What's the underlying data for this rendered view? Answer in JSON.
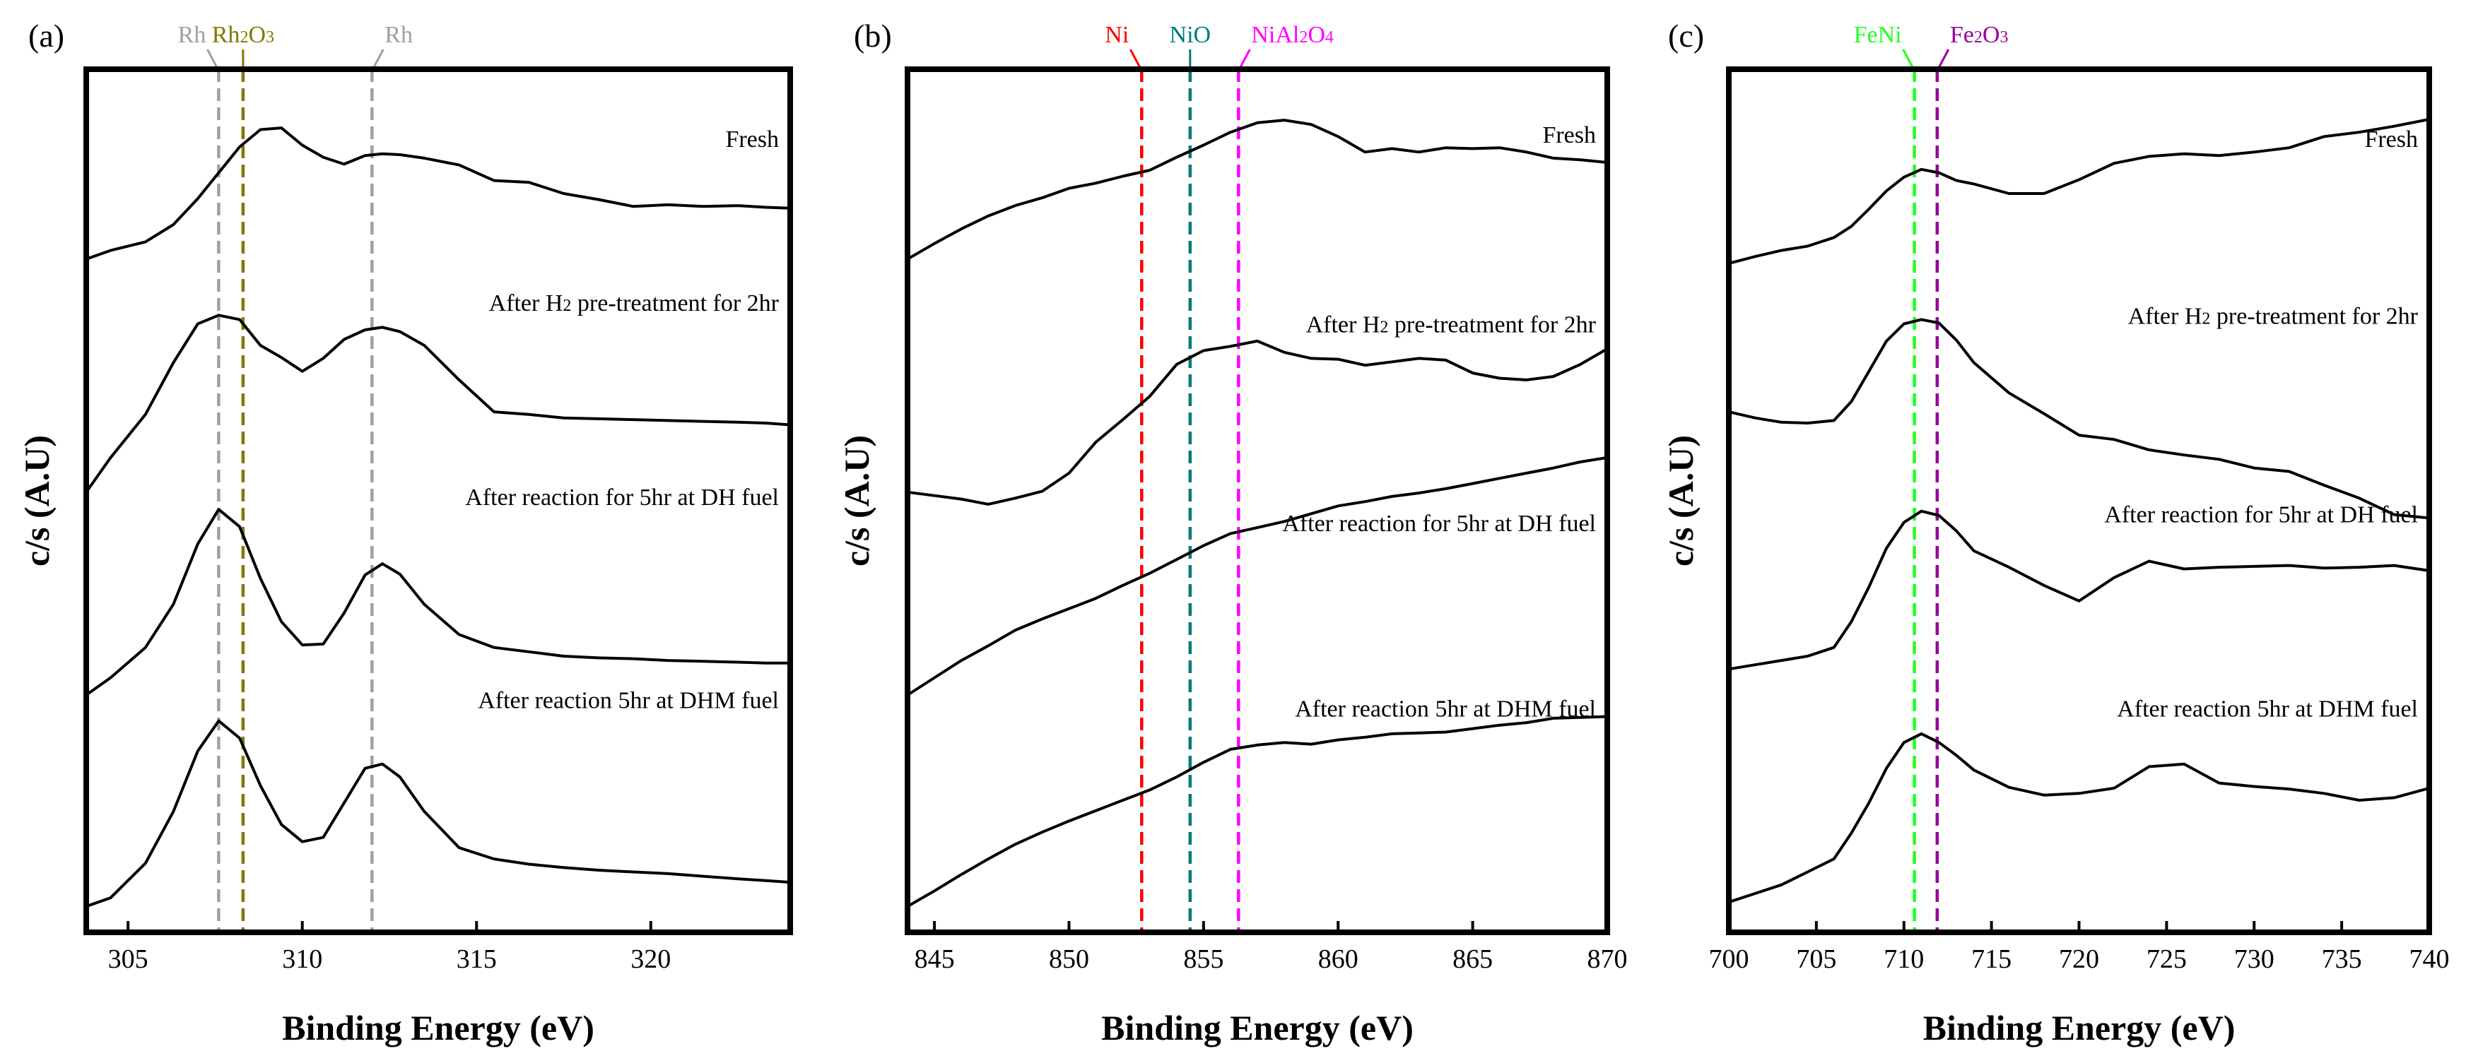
{
  "chart_data": [
    {
      "panel": "(a)",
      "type": "line",
      "xlabel": "Binding Energy (eV)",
      "ylabel": "c/s (A.U)",
      "xlim": [
        303.8,
        324
      ],
      "ylim": [
        0,
        100
      ],
      "xticks": [
        305,
        310,
        315,
        320
      ],
      "reference_lines": [
        {
          "label": "Rh",
          "x": 307.6,
          "color": "#a0a0a0"
        },
        {
          "label": "Rh2O3",
          "x": 308.3,
          "color": "#7f7a00"
        },
        {
          "label": "Rh",
          "x": 312.0,
          "color": "#a0a0a0"
        }
      ],
      "series": [
        {
          "name": "Fresh",
          "label_y": 91,
          "x": [
            303.8,
            304.5,
            305.5,
            306.3,
            307.0,
            307.6,
            308.2,
            308.8,
            309.4,
            310.0,
            310.6,
            311.2,
            311.8,
            312.3,
            312.8,
            313.5,
            314.5,
            315.5,
            316.5,
            317.5,
            318.5,
            319.5,
            320.5,
            321.5,
            322.5,
            323.3,
            324.0
          ],
          "values": [
            78,
            79,
            80,
            82,
            85,
            88,
            91,
            93,
            93.2,
            91.2,
            89.8,
            89,
            90,
            90.2,
            90.1,
            89.7,
            88.9,
            87.1,
            86.9,
            85.6,
            84.9,
            84.1,
            84.3,
            84.1,
            84.2,
            84,
            83.9
          ]
        },
        {
          "name": "After H2 pre-treatment for 2hr",
          "label_y": 72,
          "x": [
            303.8,
            304.5,
            305.5,
            306.3,
            307.0,
            307.6,
            308.2,
            308.8,
            309.4,
            310.0,
            310.6,
            311.2,
            311.8,
            312.3,
            312.8,
            313.5,
            314.5,
            315.5,
            316.5,
            317.5,
            318.5,
            319.5,
            320.5,
            321.5,
            322.5,
            323.3,
            324.0
          ],
          "values": [
            51,
            55,
            60,
            66,
            70.5,
            71.5,
            71,
            68,
            66.6,
            65,
            66.5,
            68.7,
            69.8,
            70.1,
            69.6,
            68,
            64,
            60.3,
            60,
            59.6,
            59.5,
            59.4,
            59.3,
            59.2,
            59.1,
            59,
            58.8
          ]
        },
        {
          "name": "After reaction for 5hr at DH fuel",
          "label_y": 49.5,
          "x": [
            303.8,
            304.5,
            305.5,
            306.3,
            307.0,
            307.6,
            308.2,
            308.8,
            309.4,
            310.0,
            310.6,
            311.2,
            311.8,
            312.3,
            312.8,
            313.5,
            314.5,
            315.5,
            316.5,
            317.5,
            318.5,
            319.5,
            320.5,
            321.5,
            322.5,
            323.3,
            324.0
          ],
          "values": [
            27.5,
            29.5,
            33,
            38,
            45,
            49,
            47,
            41,
            36,
            33.3,
            33.4,
            37,
            41.4,
            42.7,
            41.5,
            38,
            34.5,
            33,
            32.5,
            32,
            31.8,
            31.7,
            31.5,
            31.4,
            31.3,
            31.2,
            31.2
          ]
        },
        {
          "name": "After reaction 5hr at DHM fuel",
          "label_y": 26,
          "x": [
            303.8,
            304.5,
            305.5,
            306.3,
            307.0,
            307.6,
            308.2,
            308.8,
            309.4,
            310.0,
            310.6,
            311.2,
            311.8,
            312.3,
            312.8,
            313.5,
            314.5,
            315.5,
            316.5,
            317.5,
            318.5,
            319.5,
            320.5,
            321.5,
            322.5,
            323.3,
            324.0
          ],
          "values": [
            3,
            4,
            8,
            14,
            21,
            24.5,
            22.5,
            17,
            12.5,
            10.5,
            11,
            15,
            19,
            19.5,
            18,
            14,
            9.8,
            8.5,
            7.9,
            7.5,
            7.2,
            7,
            6.8,
            6.5,
            6.2,
            6,
            5.8
          ]
        }
      ]
    },
    {
      "panel": "(b)",
      "type": "line",
      "xlabel": "Binding Energy (eV)",
      "ylabel": "c/s (A.U)",
      "xlim": [
        844,
        870
      ],
      "ylim": [
        0,
        100
      ],
      "xticks": [
        845,
        850,
        855,
        860,
        865,
        870
      ],
      "reference_lines": [
        {
          "label": "Ni",
          "x": 852.7,
          "color": "#ff0000"
        },
        {
          "label": "NiO",
          "x": 854.5,
          "color": "#007a7a"
        },
        {
          "label": "NiAl2O4",
          "x": 856.3,
          "color": "#ff00ff"
        }
      ],
      "series": [
        {
          "name": "Fresh",
          "label_y": 91.5,
          "x": [
            844,
            845,
            846,
            847,
            848,
            849,
            850,
            851,
            852,
            853,
            854,
            855,
            856,
            857,
            858,
            859,
            860,
            861,
            862,
            863,
            864,
            865,
            866,
            867,
            868,
            869,
            870
          ],
          "values": [
            78,
            79.8,
            81.5,
            83,
            84.2,
            85.1,
            86.2,
            86.8,
            87.6,
            88.3,
            89.8,
            91.2,
            92.7,
            93.8,
            94.1,
            93.6,
            92.2,
            90.4,
            90.8,
            90.4,
            90.9,
            90.8,
            90.9,
            90.4,
            89.7,
            89.5,
            89.2
          ]
        },
        {
          "name": "After H2 pre-treatment for 2hr",
          "label_y": 69.5,
          "x": [
            844,
            845,
            846,
            847,
            848,
            849,
            850,
            851,
            852,
            853,
            854,
            855,
            856,
            857,
            858,
            859,
            860,
            861,
            862,
            863,
            864,
            865,
            866,
            867,
            868,
            869,
            870
          ],
          "values": [
            51,
            50.6,
            50.2,
            49.6,
            50.3,
            51.1,
            53.2,
            56.8,
            59.4,
            62.1,
            65.8,
            67.4,
            67.9,
            68.5,
            67.2,
            66.5,
            66.4,
            65.7,
            66.1,
            66.5,
            66.3,
            64.8,
            64.2,
            64,
            64.4,
            65.8,
            67.6
          ]
        },
        {
          "name": "After reaction for 5hr at DH fuel",
          "label_y": 46.5,
          "x": [
            844,
            845,
            846,
            847,
            848,
            849,
            850,
            851,
            852,
            853,
            854,
            855,
            856,
            857,
            858,
            859,
            860,
            861,
            862,
            863,
            864,
            865,
            866,
            867,
            868,
            869,
            870
          ],
          "values": [
            27.5,
            29.5,
            31.5,
            33.2,
            35,
            36.3,
            37.5,
            38.7,
            40.2,
            41.6,
            43.2,
            44.8,
            46.2,
            46.9,
            47.6,
            48.5,
            49.4,
            49.9,
            50.5,
            50.9,
            51.4,
            52,
            52.6,
            53.2,
            53.8,
            54.5,
            55
          ]
        },
        {
          "name": "After reaction 5hr at DHM fuel",
          "label_y": 25,
          "x": [
            844,
            845,
            846,
            847,
            848,
            849,
            850,
            851,
            852,
            853,
            854,
            855,
            856,
            857,
            858,
            859,
            860,
            861,
            862,
            863,
            864,
            865,
            866,
            867,
            868,
            869,
            870
          ],
          "values": [
            3,
            4.8,
            6.7,
            8.5,
            10.2,
            11.6,
            12.9,
            14.1,
            15.3,
            16.5,
            18,
            19.7,
            21.2,
            21.7,
            22,
            21.8,
            22.3,
            22.6,
            23,
            23.1,
            23.2,
            23.6,
            24,
            24.3,
            24.8,
            24.9,
            25
          ]
        }
      ]
    },
    {
      "panel": "(c)",
      "type": "line",
      "xlabel": "Binding Energy (eV)",
      "ylabel": "c/s (A.U)",
      "xlim": [
        700,
        740
      ],
      "ylim": [
        0,
        100
      ],
      "xticks": [
        700,
        705,
        710,
        715,
        720,
        725,
        730,
        735,
        740
      ],
      "reference_lines": [
        {
          "label": "FeNi",
          "x": 710.6,
          "color": "#22ff22"
        },
        {
          "label": "Fe2O3",
          "x": 711.9,
          "color": "#990099"
        }
      ],
      "series": [
        {
          "name": "Fresh",
          "label_y": 91,
          "x": [
            700,
            701.5,
            703,
            704.5,
            706,
            707,
            708,
            709,
            710,
            711,
            712,
            713,
            714,
            716,
            718,
            720,
            722,
            724,
            726,
            728,
            730,
            732,
            734,
            736,
            738,
            740
          ],
          "values": [
            77.5,
            78.3,
            79,
            79.5,
            80.5,
            81.8,
            83.8,
            85.9,
            87.5,
            88.4,
            88,
            87.1,
            86.7,
            85.6,
            85.6,
            87.2,
            89.1,
            89.9,
            90.2,
            90,
            90.4,
            90.9,
            92.2,
            92.7,
            93.4,
            94.2
          ]
        },
        {
          "name": "After H2 pre-treatment for 2hr",
          "label_y": 70.5,
          "x": [
            700,
            701.5,
            703,
            704.5,
            706,
            707,
            708,
            709,
            710,
            711,
            712,
            713,
            714,
            716,
            718,
            720,
            722,
            724,
            726,
            728,
            730,
            732,
            734,
            736,
            738,
            740
          ],
          "values": [
            60.3,
            59.6,
            59.1,
            59,
            59.3,
            61.5,
            65,
            68.5,
            70.5,
            71,
            70.6,
            68.6,
            66,
            62.5,
            60.1,
            57.6,
            57.1,
            55.9,
            55.3,
            54.8,
            53.8,
            53.4,
            51.8,
            50.3,
            48.4,
            48
          ]
        },
        {
          "name": "After reaction for 5hr at DH fuel",
          "label_y": 47.5,
          "x": [
            700,
            701.5,
            703,
            704.5,
            706,
            707,
            708,
            709,
            710,
            711,
            712,
            713,
            714,
            716,
            718,
            720,
            722,
            724,
            726,
            728,
            730,
            732,
            734,
            736,
            738,
            740
          ],
          "values": [
            30.5,
            31,
            31.5,
            32,
            33,
            36,
            40,
            44.5,
            47.5,
            48.8,
            48.3,
            46.5,
            44.2,
            42.3,
            40.2,
            38.4,
            41.1,
            43,
            42.1,
            42.3,
            42.4,
            42.5,
            42.2,
            42.3,
            42.5,
            41.9
          ]
        },
        {
          "name": "After reaction 5hr at DHM fuel",
          "label_y": 25,
          "x": [
            700,
            701.5,
            703,
            704.5,
            706,
            707,
            708,
            709,
            710,
            711,
            712,
            713,
            714,
            716,
            718,
            720,
            722,
            724,
            726,
            728,
            730,
            732,
            734,
            736,
            738,
            740
          ],
          "values": [
            3.5,
            4.5,
            5.5,
            7,
            8.5,
            11.5,
            15,
            19,
            22,
            23,
            22,
            20.5,
            18.8,
            16.8,
            15.9,
            16.1,
            16.7,
            19.2,
            19.5,
            17.3,
            16.9,
            16.6,
            16.1,
            15.3,
            15.6,
            16.7
          ]
        }
      ]
    }
  ]
}
